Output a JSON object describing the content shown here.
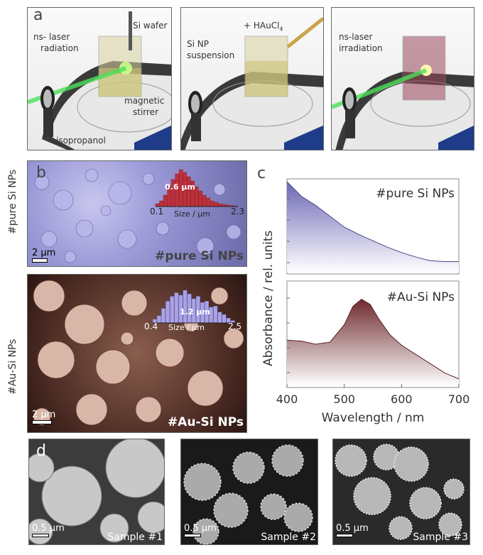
{
  "panel_a": {
    "label": "a",
    "left": {
      "radiation": [
        "ns- laser",
        "radiation"
      ],
      "wafer": "Si wafer",
      "stirrer": [
        "magnetic",
        "stirrer"
      ],
      "isopropanol": "isopropanol"
    },
    "middle": {
      "reagent": "+ HAuCl",
      "reagent_sub": "4",
      "suspension": [
        "Si NP",
        "suspension"
      ]
    },
    "right": {
      "irradiation": [
        "ns-laser",
        "irradiation"
      ]
    }
  },
  "panel_b": {
    "label": "b",
    "pure_row_label": "#pure Si NPs",
    "au_row_label": "#Au-Si NPs",
    "pure": {
      "peak": "0.6 µm",
      "min": "0.1",
      "max": "2.3",
      "axis": "Size / µm",
      "scale": "2 µm",
      "caption": "#pure Si NPs",
      "hist": [
        2,
        4,
        8,
        14,
        19,
        23,
        26,
        24,
        21,
        18,
        14,
        11,
        8,
        6,
        4,
        3,
        2,
        1.5,
        1,
        0.6,
        0.4
      ]
    },
    "au": {
      "peak": "1.2 µm",
      "min": "0.4",
      "max": "2.5",
      "axis": "Size / µm",
      "scale": "2 µm",
      "caption": "#Au-Si NPs",
      "hist": [
        3,
        6,
        12,
        18,
        22,
        25,
        23,
        27,
        24,
        20,
        22,
        17,
        18,
        13,
        14,
        9,
        7,
        4,
        2
      ]
    }
  },
  "panel_c": {
    "label": "c",
    "ylabel": "Absorbance / rel. units",
    "xlabel": "Wavelength / nm",
    "top_title": "#pure Si NPs",
    "bottom_title": "#Au-Si NPs"
  },
  "chart_data": [
    {
      "type": "area",
      "title": "#pure Si NPs",
      "xlabel": "Wavelength / nm",
      "ylabel": "Absorbance / rel. units",
      "xlim": [
        400,
        700
      ],
      "x": [
        400,
        425,
        450,
        475,
        500,
        525,
        550,
        575,
        600,
        625,
        650,
        675,
        700
      ],
      "y": [
        1.0,
        0.84,
        0.74,
        0.62,
        0.5,
        0.42,
        0.35,
        0.28,
        0.22,
        0.17,
        0.13,
        0.12,
        0.12
      ]
    },
    {
      "type": "area",
      "title": "#Au-Si NPs",
      "xlabel": "Wavelength / nm",
      "ylabel": "Absorbance / rel. units",
      "xlim": [
        400,
        700
      ],
      "xticks": [
        400,
        500,
        600,
        700
      ],
      "x": [
        400,
        425,
        450,
        475,
        500,
        515,
        530,
        545,
        560,
        580,
        600,
        625,
        650,
        675,
        700
      ],
      "y": [
        0.45,
        0.44,
        0.41,
        0.43,
        0.6,
        0.78,
        0.85,
        0.8,
        0.66,
        0.5,
        0.4,
        0.31,
        0.22,
        0.13,
        0.07
      ]
    }
  ],
  "panel_d": {
    "label": "d",
    "samples": [
      {
        "scale": "0.5 µm",
        "caption": "Sample #1"
      },
      {
        "scale": "0.5 µm",
        "caption": "Sample #2"
      },
      {
        "scale": "0.5 µm",
        "caption": "Sample #3"
      }
    ]
  }
}
